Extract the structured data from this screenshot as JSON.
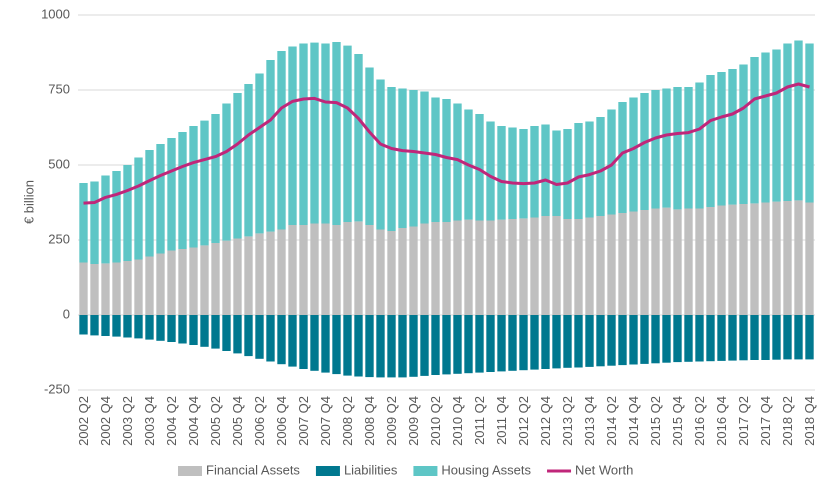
{
  "chart_data": {
    "type": "bar",
    "stacked": true,
    "y_label": "€ billion",
    "categories": [
      "2002 Q2",
      null,
      "2002 Q4",
      null,
      "2003 Q2",
      null,
      "2003 Q4",
      null,
      "2004 Q2",
      null,
      "2004 Q4",
      null,
      "2005 Q2",
      null,
      "2005 Q4",
      null,
      "2006 Q2",
      null,
      "2006 Q4",
      null,
      "2007 Q2",
      null,
      "2007 Q4",
      null,
      "2008 Q2",
      null,
      "2008 Q4",
      null,
      "2009 Q2",
      null,
      "2009 Q4",
      null,
      "2010 Q2",
      null,
      "2010 Q4",
      null,
      "2011 Q2",
      null,
      "2011 Q4",
      null,
      "2012 Q2",
      null,
      "2012 Q4",
      null,
      "2013 Q2",
      null,
      "2013 Q4",
      null,
      "2014 Q2",
      null,
      "2014 Q4",
      null,
      "2015 Q2",
      null,
      "2015 Q4",
      null,
      "2016 Q2",
      null,
      "2016 Q4",
      null,
      "2017 Q2",
      null,
      "2017 Q4",
      null,
      "2018 Q2",
      null,
      "2018 Q4"
    ],
    "series": [
      {
        "name": "Financial Assets",
        "color": "#bfbfbf",
        "type": "bar",
        "stack": "pos",
        "values": [
          175,
          170,
          172,
          175,
          180,
          185,
          195,
          205,
          215,
          220,
          225,
          232,
          240,
          248,
          255,
          262,
          272,
          278,
          285,
          300,
          300,
          305,
          305,
          300,
          310,
          312,
          300,
          285,
          280,
          290,
          295,
          305,
          310,
          310,
          315,
          318,
          315,
          315,
          318,
          320,
          322,
          325,
          330,
          330,
          320,
          320,
          325,
          330,
          335,
          340,
          345,
          350,
          355,
          358,
          352,
          355,
          355,
          360,
          365,
          368,
          370,
          372,
          375,
          378,
          380,
          382,
          375
        ]
      },
      {
        "name": "Liabilities",
        "color": "#00788f",
        "type": "bar",
        "stack": "neg",
        "values": [
          -65,
          -68,
          -70,
          -72,
          -75,
          -78,
          -82,
          -86,
          -90,
          -95,
          -100,
          -106,
          -112,
          -120,
          -128,
          -137,
          -146,
          -155,
          -164,
          -172,
          -180,
          -186,
          -192,
          -197,
          -202,
          -205,
          -207,
          -208,
          -208,
          -208,
          -206,
          -203,
          -200,
          -198,
          -196,
          -194,
          -192,
          -190,
          -188,
          -186,
          -184,
          -182,
          -180,
          -178,
          -176,
          -175,
          -173,
          -171,
          -169,
          -167,
          -165,
          -163,
          -161,
          -159,
          -157,
          -156,
          -155,
          -154,
          -153,
          -152,
          -151,
          -150,
          -150,
          -149,
          -148,
          -148,
          -148
        ]
      },
      {
        "name": "Housing Assets",
        "color": "#5ec6c6",
        "type": "bar",
        "stack": "pos",
        "values": [
          265,
          275,
          293,
          305,
          320,
          340,
          355,
          365,
          375,
          390,
          405,
          416,
          430,
          457,
          485,
          508,
          533,
          572,
          595,
          595,
          605,
          603,
          600,
          610,
          588,
          558,
          525,
          500,
          480,
          465,
          455,
          440,
          415,
          410,
          390,
          367,
          355,
          330,
          312,
          305,
          298,
          305,
          305,
          285,
          300,
          320,
          320,
          330,
          350,
          370,
          380,
          390,
          395,
          397,
          408,
          405,
          420,
          440,
          445,
          452,
          465,
          488,
          500,
          507,
          525,
          533,
          530
        ]
      },
      {
        "name": "Net Worth",
        "color": "#c0267a",
        "type": "line",
        "values": [
          373,
          375,
          392,
          402,
          415,
          430,
          448,
          465,
          480,
          495,
          508,
          518,
          528,
          545,
          570,
          600,
          625,
          650,
          690,
          712,
          720,
          722,
          710,
          708,
          690,
          655,
          610,
          570,
          555,
          548,
          545,
          540,
          535,
          525,
          518,
          500,
          485,
          462,
          445,
          440,
          438,
          440,
          450,
          435,
          440,
          460,
          468,
          480,
          500,
          540,
          555,
          575,
          590,
          600,
          605,
          608,
          620,
          648,
          660,
          670,
          690,
          720,
          730,
          740,
          760,
          770,
          760
        ]
      }
    ],
    "ylim": [
      -250,
      1000
    ],
    "yticks": [
      1000,
      750,
      500,
      250,
      0,
      -250
    ],
    "grid": true,
    "legend": "bottom"
  }
}
